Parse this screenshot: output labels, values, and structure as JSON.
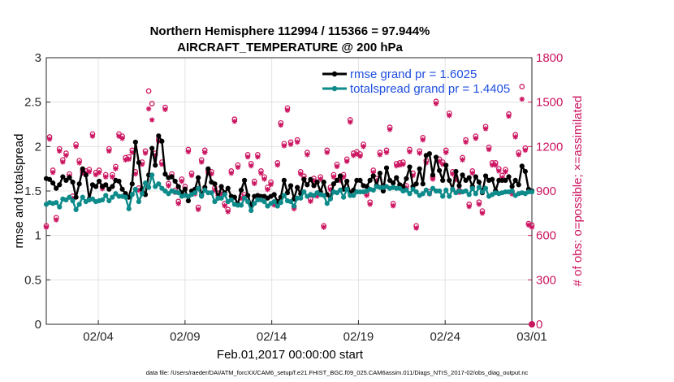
{
  "chart_data": {
    "type": "line",
    "title": "Northern Hemisphere 112994 / 115366 = 97.944%",
    "subtitle": "AIRCRAFT_TEMPERATURE @ 200 hPa",
    "xlabel": "Feb.01,2017 00:00:00 start",
    "ylabel": "rmse and totalspread",
    "ylabel_right": "# of obs: o=possible; ×=assimilated",
    "footer": "data file: /Users/raeder/DAI/ATM_forcXX/CAM6_setup/f.e21.FHIST_BGC.f09_025.CAM6assim.011/Diags_NTrS_2017-02/obs_diag_output.nc",
    "x_range": [
      0,
      28
    ],
    "ylim": [
      0,
      3
    ],
    "yticks": [
      "0",
      "0.5",
      "1",
      "1.5",
      "2",
      "2.5",
      "3"
    ],
    "ylim_right": [
      0,
      1800
    ],
    "yticks_right": [
      "0",
      "300",
      "600",
      "900",
      "1200",
      "1500",
      "1800"
    ],
    "xticks": [
      {
        "label": "02/04",
        "day": 3
      },
      {
        "label": "02/09",
        "day": 8
      },
      {
        "label": "02/14",
        "day": 13
      },
      {
        "label": "02/19",
        "day": 18
      },
      {
        "label": "02/24",
        "day": 23
      },
      {
        "label": "03/01",
        "day": 28
      }
    ],
    "legend": [
      {
        "name": "rmse grand pr = 1.6025",
        "color": "#000000"
      },
      {
        "name": "totalspread grand pr = 1.4405",
        "color": "#0d8a8a"
      }
    ],
    "series": [
      {
        "name": "rmse",
        "color": "#000000",
        "values": [
          1.64,
          1.63,
          1.59,
          1.53,
          1.57,
          1.66,
          1.62,
          1.65,
          1.6,
          1.43,
          1.58,
          1.75,
          1.68,
          1.41,
          1.57,
          1.55,
          1.61,
          1.55,
          1.57,
          1.52,
          1.55,
          1.62,
          1.61,
          1.52,
          1.47,
          1.43,
          1.58,
          2.05,
          1.82,
          1.52,
          1.46,
          1.68,
          1.98,
          1.79,
          2.12,
          2.06,
          1.69,
          1.65,
          1.66,
          1.61,
          1.55,
          1.48,
          1.52,
          1.39,
          1.5,
          1.52,
          1.65,
          1.45,
          1.54,
          1.75,
          1.6,
          1.58,
          1.42,
          1.55,
          1.48,
          1.53,
          1.44,
          1.43,
          1.35,
          1.51,
          1.62,
          1.45,
          1.34,
          1.44,
          1.45,
          1.44,
          1.44,
          1.42,
          1.44,
          1.46,
          1.38,
          1.43,
          1.62,
          1.48,
          1.56,
          1.41,
          1.54,
          1.47,
          1.63,
          1.57,
          1.63,
          1.56,
          1.6,
          1.49,
          1.6,
          1.46,
          1.42,
          1.58,
          1.62,
          1.67,
          1.52,
          1.61,
          1.48,
          1.51,
          1.62,
          1.62,
          1.56,
          1.55,
          1.62,
          1.67,
          1.56,
          1.7,
          1.5,
          1.76,
          1.62,
          1.59,
          1.65,
          1.57,
          1.55,
          1.64,
          1.77,
          1.55,
          1.58,
          1.75,
          1.58,
          1.9,
          1.92,
          1.68,
          1.88,
          1.73,
          1.62,
          1.79,
          1.62,
          1.52,
          1.72,
          1.56,
          1.68,
          1.62,
          1.65,
          1.55,
          1.66,
          1.6,
          1.48,
          1.67,
          1.62,
          1.63,
          1.5,
          1.62,
          1.62,
          1.62,
          1.66,
          1.55,
          1.62,
          1.57,
          1.78,
          1.72,
          1.52,
          1.5
        ]
      },
      {
        "name": "totalspread",
        "color": "#0d8a8a",
        "values": [
          1.35,
          1.37,
          1.36,
          1.37,
          1.32,
          1.41,
          1.4,
          1.43,
          1.39,
          1.29,
          1.35,
          1.43,
          1.38,
          1.4,
          1.41,
          1.38,
          1.39,
          1.4,
          1.45,
          1.39,
          1.43,
          1.47,
          1.44,
          1.44,
          1.43,
          1.3,
          1.46,
          1.52,
          1.38,
          1.47,
          1.59,
          1.54,
          1.68,
          1.55,
          1.58,
          1.53,
          1.5,
          1.47,
          1.5,
          1.49,
          1.48,
          1.44,
          1.45,
          1.44,
          1.46,
          1.48,
          1.53,
          1.44,
          1.51,
          1.48,
          1.48,
          1.38,
          1.42,
          1.42,
          1.46,
          1.38,
          1.4,
          1.35,
          1.34,
          1.34,
          1.42,
          1.38,
          1.28,
          1.36,
          1.4,
          1.4,
          1.38,
          1.33,
          1.36,
          1.38,
          1.33,
          1.37,
          1.45,
          1.39,
          1.38,
          1.33,
          1.42,
          1.42,
          1.49,
          1.44,
          1.46,
          1.45,
          1.48,
          1.46,
          1.45,
          1.36,
          1.41,
          1.49,
          1.48,
          1.51,
          1.43,
          1.52,
          1.45,
          1.45,
          1.49,
          1.49,
          1.49,
          1.5,
          1.52,
          1.51,
          1.55,
          1.54,
          1.54,
          1.55,
          1.53,
          1.54,
          1.53,
          1.53,
          1.5,
          1.51,
          1.47,
          1.52,
          1.49,
          1.45,
          1.47,
          1.51,
          1.47,
          1.53,
          1.5,
          1.5,
          1.44,
          1.51,
          1.44,
          1.52,
          1.48,
          1.5,
          1.49,
          1.5,
          1.46,
          1.53,
          1.47,
          1.54,
          1.49,
          1.53,
          1.44,
          1.46,
          1.48,
          1.47,
          1.48,
          1.49,
          1.49,
          1.5,
          1.45,
          1.47,
          1.48,
          1.47,
          1.49,
          1.49
        ]
      }
    ],
    "obs_possible": [
      665,
      1265,
      1040,
      720,
      1185,
      1110,
      1155,
      1015,
      865,
      1215,
      1105,
      1035,
      1035,
      1045,
      1285,
      1025,
      1040,
      930,
      1010,
      1185,
      1010,
      1065,
      1285,
      1270,
      1125,
      1130,
      1175,
      1030,
      920,
      1095,
      1170,
      1575,
      1490,
      1155,
      1250,
      1095,
      1465,
      950,
      1015,
      905,
      830,
      980,
      930,
      1180,
      1020,
      895,
      790,
      1110,
      1175,
      1035,
      1030,
      920,
      885,
      895,
      815,
      775,
      1035,
      1385,
      1075,
      865,
      875,
      1145,
      1085,
      965,
      1145,
      1035,
      995,
      925,
      960,
      820,
      1090,
      1360,
      1220,
      1460,
      1230,
      795,
      1245,
      1030,
      1000,
      1160,
      845,
      985,
      880,
      995,
      665,
      1175,
      925,
      1010,
      1080,
      985,
      1010,
      1115,
      1380,
      1155,
      1165,
      1150,
      1215,
      885,
      825,
      1040,
      985,
      1160,
      935,
      1175,
      1330,
      815,
      1085,
      1090,
      1095,
      935,
      1180,
      1020,
      665,
      1170,
      1260,
      1105,
      895,
      995,
      1505,
      1115,
      1095,
      1175,
      1425,
      1030,
      990,
      905,
      1125,
      1245,
      810,
      1035,
      1270,
      825,
      765,
      1335,
      1195,
      1090,
      1090,
      1050,
      1005,
      1045,
      1420,
      895,
      1280,
      1160,
      1605,
      1190,
      680,
      670
    ],
    "obs_assimilated": [
      655,
      1250,
      1025,
      705,
      1170,
      1095,
      1140,
      1000,
      850,
      1200,
      1090,
      1020,
      1020,
      1030,
      1270,
      1010,
      1025,
      915,
      995,
      1170,
      995,
      1050,
      1270,
      1255,
      1110,
      1115,
      1160,
      1015,
      905,
      1080,
      1155,
      1455,
      1380,
      1140,
      1235,
      1080,
      1450,
      935,
      1000,
      890,
      815,
      965,
      915,
      1165,
      1005,
      880,
      775,
      1095,
      1160,
      1020,
      1015,
      905,
      870,
      880,
      800,
      760,
      1020,
      1370,
      1060,
      850,
      860,
      1130,
      1070,
      950,
      1130,
      1020,
      980,
      910,
      945,
      805,
      1075,
      1345,
      1205,
      1445,
      1215,
      780,
      1230,
      1015,
      985,
      1145,
      830,
      970,
      865,
      980,
      655,
      1160,
      910,
      995,
      1065,
      970,
      995,
      1100,
      1365,
      1140,
      1150,
      1135,
      1200,
      870,
      810,
      1025,
      970,
      1145,
      920,
      1160,
      1315,
      800,
      1070,
      1075,
      1080,
      920,
      1165,
      1005,
      650,
      1155,
      1245,
      1090,
      880,
      980,
      1490,
      1100,
      1080,
      1160,
      1410,
      1015,
      975,
      890,
      1110,
      1230,
      795,
      1020,
      1255,
      810,
      750,
      1320,
      1180,
      1075,
      1075,
      1035,
      990,
      1030,
      1405,
      880,
      1265,
      1145,
      1520,
      1175,
      670,
      655
    ],
    "final_marker_value": 0
  }
}
